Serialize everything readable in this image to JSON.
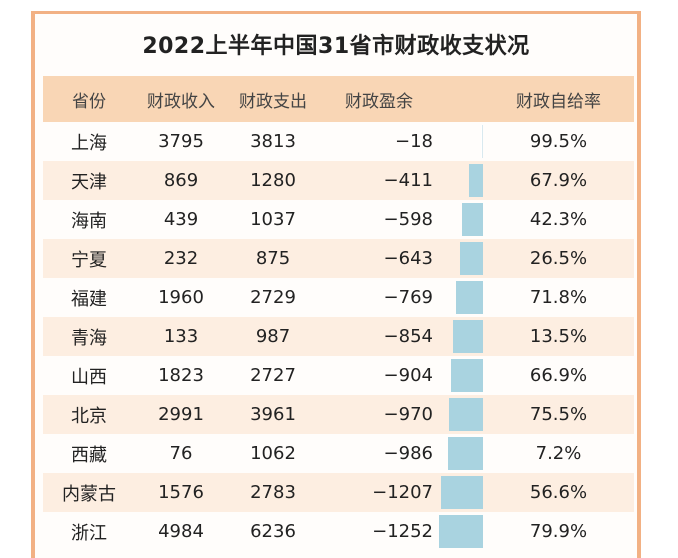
{
  "title": "2022上半年中国31省市财政收支状况",
  "headers": [
    "省份",
    "财政收入",
    "财政支出",
    "财政盈余",
    "财政自给率"
  ],
  "rows": [
    {
      "province": "上海",
      "revenue": "3795",
      "expenditure": "3813",
      "surplus": "−18",
      "rate": "99.5%",
      "surplus_value": -18
    },
    {
      "province": "天津",
      "revenue": "869",
      "expenditure": "1280",
      "surplus": "−411",
      "rate": "67.9%",
      "surplus_value": -411
    },
    {
      "province": "海南",
      "revenue": "439",
      "expenditure": "1037",
      "surplus": "−598",
      "rate": "42.3%",
      "surplus_value": -598
    },
    {
      "province": "宁夏",
      "revenue": "232",
      "expenditure": "875",
      "surplus": "−643",
      "rate": "26.5%",
      "surplus_value": -643
    },
    {
      "province": "福建",
      "revenue": "1960",
      "expenditure": "2729",
      "surplus": "−769",
      "rate": "71.8%",
      "surplus_value": -769
    },
    {
      "province": "青海",
      "revenue": "133",
      "expenditure": "987",
      "surplus": "−854",
      "rate": "13.5%",
      "surplus_value": -854
    },
    {
      "province": "山西",
      "revenue": "1823",
      "expenditure": "2727",
      "surplus": "−904",
      "rate": "66.9%",
      "surplus_value": -904
    },
    {
      "province": "北京",
      "revenue": "2991",
      "expenditure": "3961",
      "surplus": "−970",
      "rate": "75.5%",
      "surplus_value": -970
    },
    {
      "province": "西藏",
      "revenue": "76",
      "expenditure": "1062",
      "surplus": "−986",
      "rate": "7.2%",
      "surplus_value": -986
    },
    {
      "province": "内蒙古",
      "revenue": "1576",
      "expenditure": "2783",
      "surplus": "−1207",
      "rate": "56.6%",
      "surplus_value": -1207
    },
    {
      "province": "浙江",
      "revenue": "4984",
      "expenditure": "6236",
      "surplus": "−1252",
      "rate": "79.9%",
      "surplus_value": -1252
    }
  ],
  "colors": {
    "frame": "#f2b184",
    "header_bg": "#f9d6b5",
    "row_alt_bg": "#fdeee1",
    "bar": "#a9d3e0"
  }
}
